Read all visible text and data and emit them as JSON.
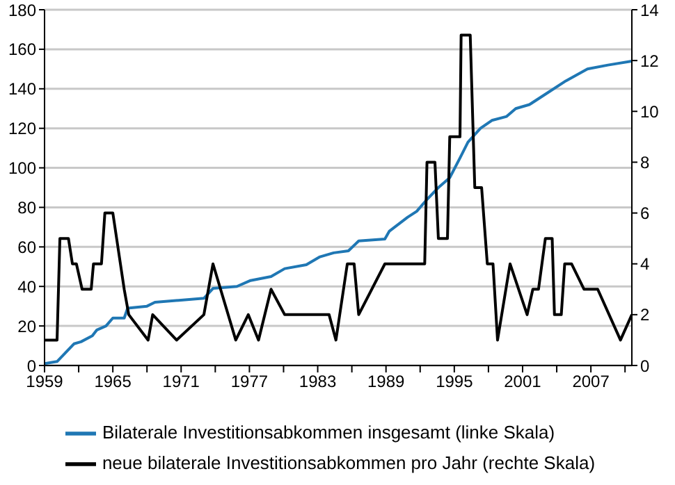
{
  "chart_data": {
    "type": "line",
    "xlim": [
      1959,
      2010.6
    ],
    "xticks": [
      1959,
      {
        "value": 1962,
        "label": null
      },
      1965,
      {
        "value": 1968,
        "label": null
      },
      1971,
      {
        "value": 1974,
        "label": null
      },
      1977,
      {
        "value": 1980,
        "label": null
      },
      1983,
      {
        "value": 1986,
        "label": null
      },
      1989,
      {
        "value": 1992,
        "label": null
      },
      1995,
      {
        "value": 1998,
        "label": null
      },
      2001,
      {
        "value": 2004,
        "label": null
      },
      2007,
      {
        "value": 2010,
        "label": null
      }
    ],
    "ylim": [
      0,
      180
    ],
    "yticks": [
      0,
      20,
      40,
      60,
      80,
      100,
      120,
      140,
      160,
      180
    ],
    "y2lim": [
      0,
      14
    ],
    "y2ticks": [
      0,
      2,
      4,
      6,
      8,
      10,
      12,
      14
    ],
    "grid": "y",
    "legend": "bottom",
    "marker": "none",
    "line_style": "solid",
    "series": [
      {
        "name": "Bilaterale Investitionsabkommen insgesamt (linke Skala)",
        "color": "#1f77b4",
        "x": [
          1959,
          1960.1,
          1961.6,
          1962.2,
          1963.2,
          1963.6,
          1964.4,
          1965,
          1966,
          1966.3,
          1968,
          1968.7,
          1973,
          1973.8,
          1975.9,
          1977.1,
          1978.9,
          1980.1,
          1982,
          1983.2,
          1984.4,
          1985.7,
          1986.6,
          1988.9,
          1989.3,
          1990.9,
          1991.7,
          1992.6,
          1993.6,
          1994.6,
          1995.5,
          1996.2,
          1997.3,
          1998.3,
          1999.6,
          2000.4,
          2001.6,
          2003.2,
          2004.8,
          2006.7,
          2008.5,
          2010.6
        ],
        "values": [
          1,
          2,
          11,
          12,
          15,
          18,
          20,
          24,
          24,
          29,
          30,
          32,
          34,
          39,
          40,
          43,
          45,
          49,
          51,
          55,
          57,
          58,
          63,
          64,
          68,
          75,
          78,
          84,
          90,
          95,
          105,
          113,
          120,
          124,
          126,
          130,
          132,
          138,
          144,
          150,
          152,
          154
        ]
      },
      {
        "name": "neue bilaterale Investitionsabkommen pro Jahr (rechte Skala)",
        "color": "#000000",
        "axis": "y2",
        "x": [
          1959,
          1960.1,
          1960.35,
          1961.1,
          1961.45,
          1961.8,
          1962.3,
          1963.1,
          1963.3,
          1964.0,
          1964.3,
          1965.0,
          1966.0,
          1966.4,
          1968.1,
          1968.5,
          1970.6,
          1973.0,
          1973.8,
          1975.8,
          1976.9,
          1977.8,
          1978.9,
          1980.1,
          1984.0,
          1984.6,
          1985.6,
          1986.2,
          1986.6,
          1988.9,
          1992.4,
          1992.6,
          1993.3,
          1993.6,
          1994.4,
          1994.6,
          1995.5,
          1995.6,
          1996.4,
          1996.8,
          1997.4,
          1997.9,
          1998.4,
          1998.8,
          1999.9,
          2001.4,
          2001.9,
          2002.4,
          2003.0,
          2003.6,
          2003.8,
          2004.4,
          2004.7,
          2005.3,
          2006.4,
          2007.6,
          2009.6,
          2010.6
        ],
        "values": [
          1,
          1,
          5,
          5,
          4,
          4,
          3,
          3,
          4,
          4,
          6,
          6,
          3,
          2,
          1,
          2,
          1,
          2,
          4,
          1,
          2,
          1,
          3,
          2,
          2,
          1,
          4,
          4,
          2,
          4,
          4,
          8,
          8,
          5,
          5,
          9,
          9,
          13,
          13,
          7,
          7,
          4,
          4,
          1,
          4,
          2,
          3,
          3,
          5,
          5,
          2,
          2,
          4,
          4,
          3,
          3,
          1,
          2
        ]
      }
    ]
  }
}
